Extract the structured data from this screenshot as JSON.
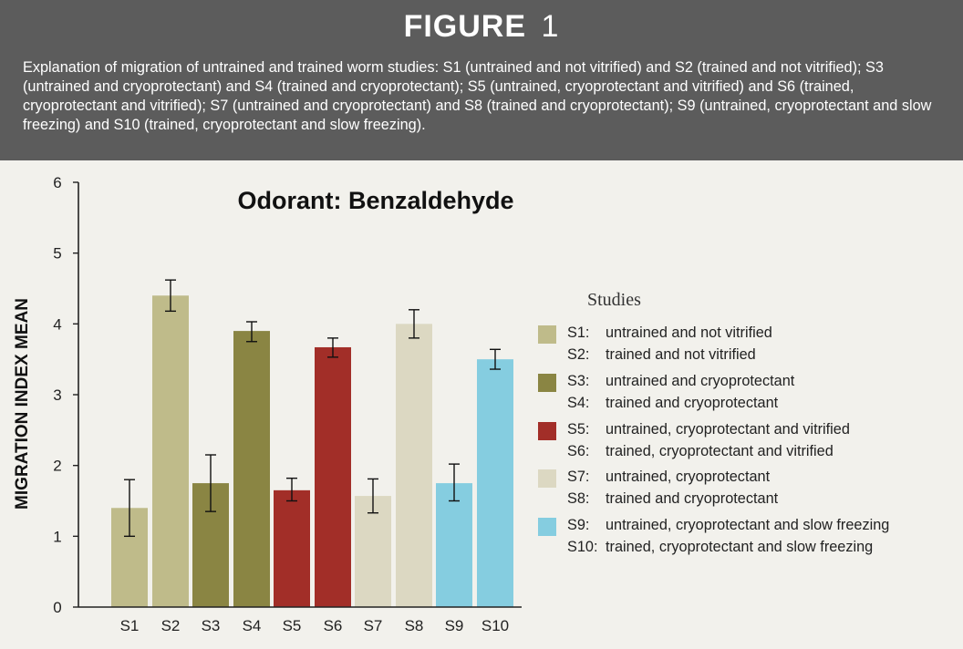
{
  "header": {
    "title": "FIGURE",
    "title_number": "1",
    "description": "Explanation of migration of untrained and trained worm studies: S1 (untrained and not vitrified) and S2 (trained and not vitrified); S3 (untrained and cryoprotectant) and S4 (trained and cryoprotectant); S5 (untrained, cryoprotectant and vitrified) and S6 (trained, cryoprotectant and vitrified); S7 (untrained and cryoprotectant) and S8 (trained and cryoprotectant); S9 (untrained, cryoprotectant and slow freezing) and S10 (trained, cryoprotectant and slow freezing)."
  },
  "chart_data": {
    "type": "bar",
    "title": "Odorant: Benzaldehyde",
    "xlabel": "",
    "ylabel": "MIGRATION INDEX MEAN",
    "ylim": [
      0,
      6
    ],
    "yticks": [
      "0",
      "1",
      "2",
      "3",
      "4",
      "5",
      "6"
    ],
    "categories": [
      "S1",
      "S2",
      "S3",
      "S4",
      "S5",
      "S6",
      "S7",
      "S8",
      "S9",
      "S10"
    ],
    "values": [
      1.4,
      4.4,
      1.75,
      3.9,
      1.65,
      3.67,
      1.57,
      4.0,
      1.75,
      3.5
    ],
    "error_low": [
      1.0,
      4.18,
      1.35,
      3.75,
      1.5,
      3.53,
      1.33,
      3.8,
      1.5,
      3.36
    ],
    "error_high": [
      1.8,
      4.62,
      2.15,
      4.03,
      1.82,
      3.8,
      1.81,
      4.2,
      2.02,
      3.64
    ],
    "colors": [
      "#bfbb8a",
      "#bfbb8a",
      "#8a8543",
      "#8a8543",
      "#a22e28",
      "#a22e28",
      "#dcd8c2",
      "#dcd8c2",
      "#85cde0",
      "#85cde0"
    ],
    "legend": {
      "title": "Studies",
      "groups": [
        {
          "color": "#bfbb8a",
          "lines": [
            {
              "code": "S1:",
              "text": "untrained and not vitrified"
            },
            {
              "code": "S2:",
              "text": "trained and not vitrified"
            }
          ]
        },
        {
          "color": "#8a8543",
          "lines": [
            {
              "code": "S3:",
              "text": "untrained and cryoprotectant"
            },
            {
              "code": "S4:",
              "text": "trained and cryoprotectant"
            }
          ]
        },
        {
          "color": "#a22e28",
          "lines": [
            {
              "code": "S5:",
              "text": "untrained, cryoprotectant and vitrified"
            },
            {
              "code": "S6:",
              "text": "trained, cryoprotectant and vitrified"
            }
          ]
        },
        {
          "color": "#dcd8c2",
          "lines": [
            {
              "code": "S7:",
              "text": "untrained, cryoprotectant"
            },
            {
              "code": "S8:",
              "text": "trained and cryoprotectant"
            }
          ]
        },
        {
          "color": "#85cde0",
          "lines": [
            {
              "code": "S9:",
              "text": "untrained, cryoprotectant and slow freezing"
            },
            {
              "code": "S10:",
              "text": "trained, cryoprotectant and slow freezing"
            }
          ]
        }
      ]
    }
  }
}
